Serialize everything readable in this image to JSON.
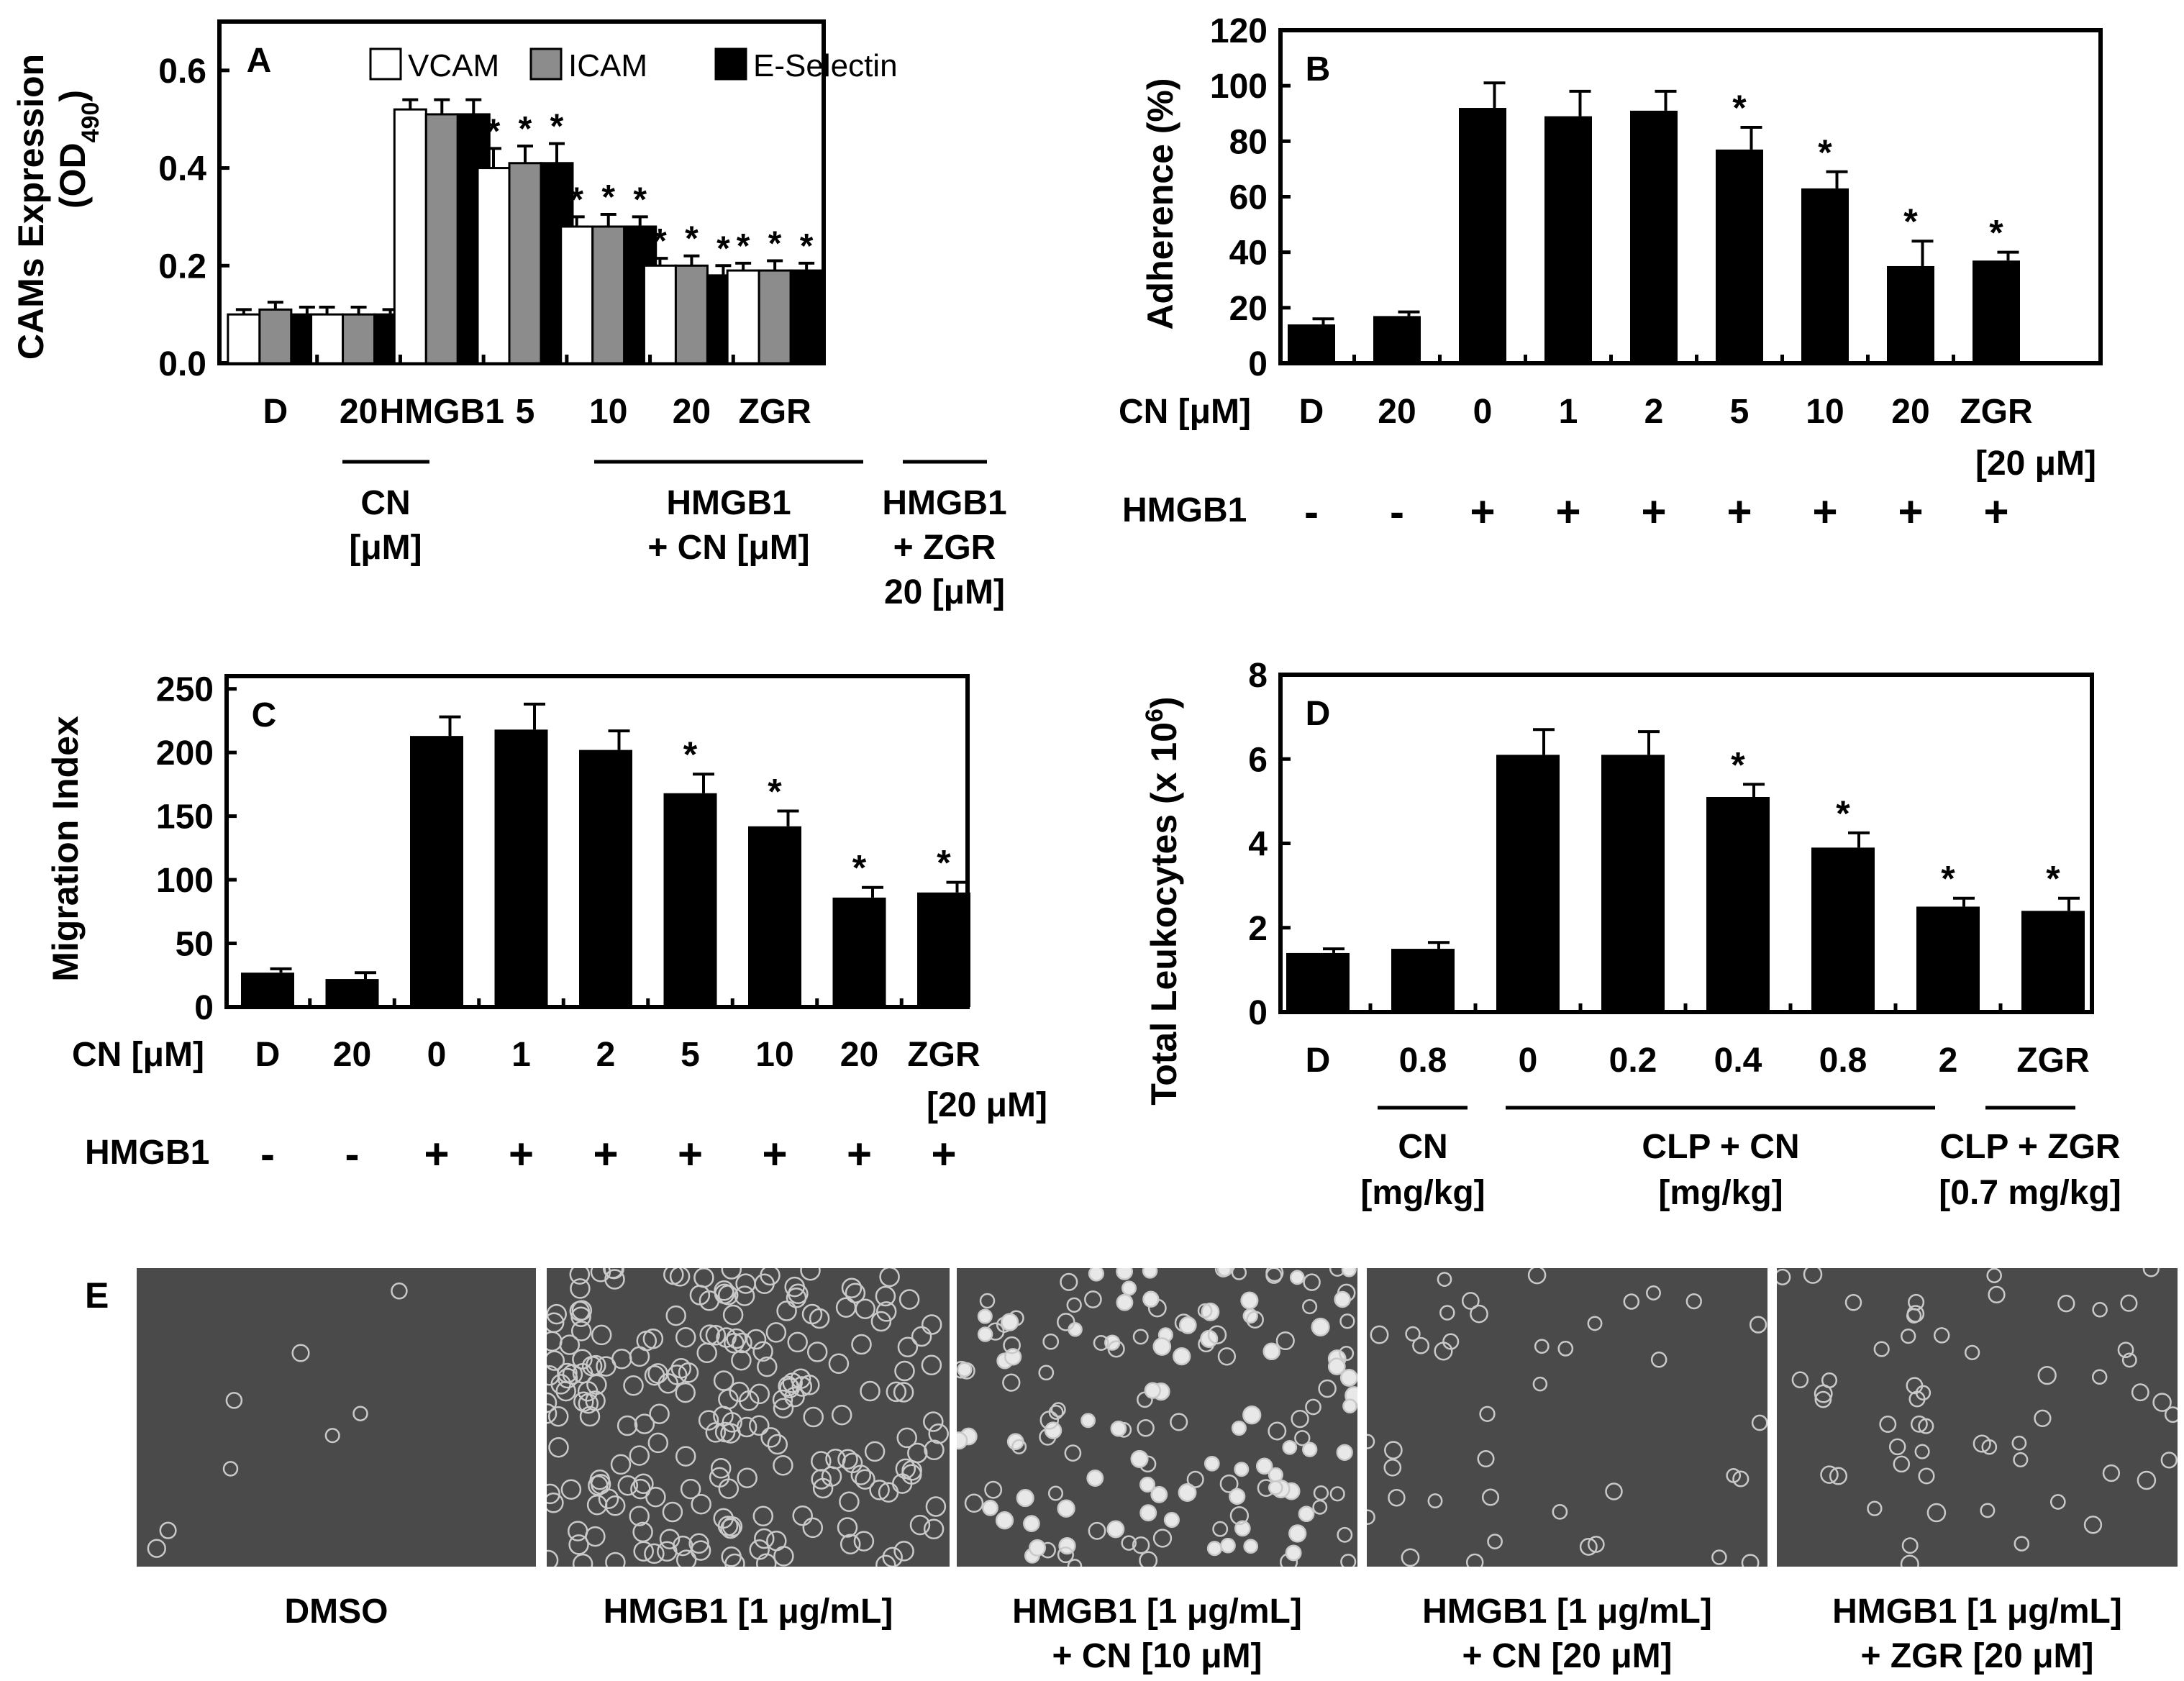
{
  "chart_data": [
    {
      "panel": "A",
      "type": "bar",
      "ylabel": "CAMs Expression",
      "ylabel2": "(OD",
      "ylabel2_sub": "490",
      "ylabel2_end": ")",
      "ylim": [
        0,
        0.7
      ],
      "yticks": [
        "0.0",
        "0.2",
        "0.4",
        "0.6"
      ],
      "ytick_values": [
        0.0,
        0.2,
        0.4,
        0.6
      ],
      "categories": [
        "D",
        "20",
        "HMGB1",
        "5",
        "10",
        "20",
        "ZGR"
      ],
      "series": [
        {
          "name": "VCAM",
          "color": "#ffffff",
          "values": [
            0.1,
            0.1,
            0.52,
            0.4,
            0.28,
            0.2,
            0.19
          ],
          "errors": [
            0.01,
            0.015,
            0.02,
            0.04,
            0.02,
            0.015,
            0.015
          ]
        },
        {
          "name": "ICAM",
          "color": "#8c8c8c",
          "values": [
            0.11,
            0.1,
            0.51,
            0.41,
            0.28,
            0.2,
            0.19
          ],
          "errors": [
            0.015,
            0.015,
            0.03,
            0.035,
            0.025,
            0.02,
            0.02
          ]
        },
        {
          "name": "E-Selectin",
          "color": "#000000",
          "values": [
            0.1,
            0.1,
            0.51,
            0.41,
            0.28,
            0.18,
            0.19
          ],
          "errors": [
            0.015,
            0.01,
            0.03,
            0.04,
            0.02,
            0.02,
            0.015
          ]
        }
      ],
      "significant": [
        false,
        false,
        false,
        true,
        true,
        true,
        true
      ],
      "groups": [
        {
          "lines": [
            "CN",
            "[μM]"
          ]
        },
        {
          "lines": [
            "HMGB1",
            "+ CN [μM]"
          ]
        },
        {
          "lines": [
            "HMGB1",
            "+ ZGR",
            "20 [μM]"
          ]
        }
      ]
    },
    {
      "panel": "B",
      "type": "bar",
      "ylabel": "Adherence (%)",
      "ylim": [
        0,
        120
      ],
      "yticks": [
        "0",
        "20",
        "40",
        "60",
        "80",
        "100",
        "120"
      ],
      "ytick_values": [
        0,
        20,
        40,
        60,
        80,
        100,
        120
      ],
      "row_label": "CN [μM]",
      "categories": [
        "D",
        "20",
        "0",
        "1",
        "2",
        "5",
        "10",
        "20",
        "ZGR"
      ],
      "extra_label": "[20 μM]",
      "values": [
        14,
        17,
        92,
        89,
        91,
        77,
        63,
        35,
        37
      ],
      "errors": [
        2,
        1.5,
        9,
        9,
        7,
        8,
        6,
        9,
        3
      ],
      "significant": [
        false,
        false,
        false,
        false,
        false,
        true,
        true,
        true,
        true
      ],
      "hmgb1_label": "HMGB1",
      "hmgb1": [
        "-",
        "-",
        "+",
        "+",
        "+",
        "+",
        "+",
        "+",
        "+"
      ]
    },
    {
      "panel": "C",
      "type": "bar",
      "ylabel": "Migration Index",
      "ylim": [
        0,
        260
      ],
      "yticks": [
        "0",
        "50",
        "100",
        "150",
        "200",
        "250"
      ],
      "ytick_values": [
        0,
        50,
        100,
        150,
        200,
        250
      ],
      "row_label": "CN [μM]",
      "categories": [
        "D",
        "20",
        "0",
        "1",
        "2",
        "5",
        "10",
        "20",
        "ZGR"
      ],
      "extra_label": "[20 μM]",
      "values": [
        27,
        22,
        213,
        218,
        202,
        168,
        142,
        86,
        90
      ],
      "errors": [
        3,
        5,
        15,
        20,
        15,
        15,
        12,
        8,
        8
      ],
      "significant": [
        false,
        false,
        false,
        false,
        false,
        true,
        true,
        true,
        true
      ],
      "hmgb1_label": "HMGB1",
      "hmgb1": [
        "-",
        "-",
        "+",
        "+",
        "+",
        "+",
        "+",
        "+",
        "+"
      ]
    },
    {
      "panel": "D",
      "type": "bar",
      "ylabel": "Total Leukocytes (x 10",
      "ylabel_sup": "6",
      "ylabel_end": ")",
      "ylim": [
        0,
        8
      ],
      "yticks": [
        "0",
        "2",
        "4",
        "6",
        "8"
      ],
      "ytick_values": [
        0,
        2,
        4,
        6,
        8
      ],
      "categories": [
        "D",
        "0.8",
        "0",
        "0.2",
        "0.4",
        "0.8",
        "2",
        "ZGR"
      ],
      "values": [
        1.4,
        1.5,
        6.1,
        6.1,
        5.1,
        3.9,
        2.5,
        2.4
      ],
      "errors": [
        0.1,
        0.15,
        0.6,
        0.55,
        0.3,
        0.35,
        0.2,
        0.3
      ],
      "significant": [
        false,
        false,
        false,
        false,
        true,
        true,
        true,
        true
      ],
      "groups": [
        {
          "lines": [
            "CN",
            "[mg/kg]"
          ]
        },
        {
          "lines": [
            "CLP + CN",
            "[mg/kg]"
          ]
        },
        {
          "lines": [
            "CLP + ZGR",
            "[0.7 mg/kg]"
          ]
        }
      ]
    }
  ],
  "panel_e": {
    "letter": "E",
    "panels": [
      {
        "label_lines": [
          "DMSO"
        ]
      },
      {
        "label_lines": [
          "HMGB1 [1 μg/mL]"
        ]
      },
      {
        "label_lines": [
          "HMGB1 [1 μg/mL]",
          "+ CN [10 μM]"
        ]
      },
      {
        "label_lines": [
          "HMGB1 [1 μg/mL]",
          "+ CN [20 μM]"
        ]
      },
      {
        "label_lines": [
          "HMGB1 [1 μg/mL]",
          "+ ZGR [20 μM]"
        ]
      }
    ]
  },
  "significance_marker": "*"
}
